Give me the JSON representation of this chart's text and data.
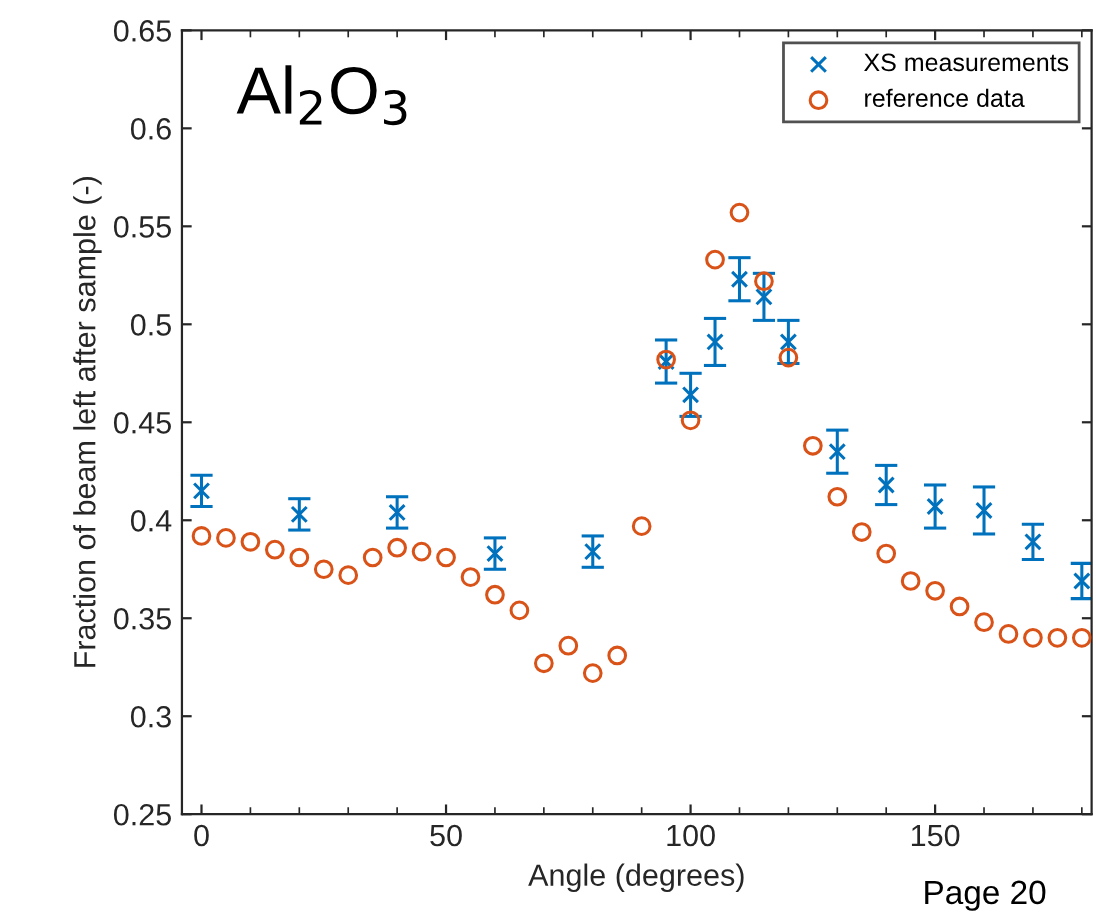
{
  "chart_data": {
    "type": "scatter",
    "xlabel": "Angle (degrees)",
    "ylabel": "Fraction of beam left after sample (-)",
    "annotations": [
      "Al$_{2}$O$_{3}$",
      "Page 20"
    ],
    "xlim": [
      -4,
      182
    ],
    "ylim": [
      0.25,
      0.65
    ],
    "xticks": [
      0,
      50,
      100,
      150
    ],
    "yticks": [
      0.25,
      0.3,
      0.35,
      0.4,
      0.45,
      0.5,
      0.55,
      0.6,
      0.65
    ],
    "grid": false,
    "legend": "top right",
    "series": [
      {
        "name": "XS measurements",
        "color": "#0072bd",
        "marker": "cross",
        "x": [
          0,
          20,
          40,
          60,
          80,
          95,
          100,
          105,
          110,
          115,
          120,
          130,
          140,
          150,
          160,
          170,
          180
        ],
        "values": [
          0.415,
          0.403,
          0.404,
          0.383,
          0.384,
          0.481,
          0.464,
          0.491,
          0.523,
          0.514,
          0.491,
          0.435,
          0.418,
          0.407,
          0.405,
          0.389,
          0.369
        ],
        "errors": [
          0.008,
          0.008,
          0.008,
          0.008,
          0.008,
          0.011,
          0.011,
          0.012,
          0.011,
          0.012,
          0.011,
          0.011,
          0.01,
          0.011,
          0.012,
          0.009,
          0.009
        ]
      },
      {
        "name": "reference data",
        "color": "#d95319",
        "marker": "circle",
        "x": [
          0,
          5,
          10,
          15,
          20,
          25,
          30,
          35,
          40,
          45,
          50,
          55,
          60,
          65,
          70,
          75,
          80,
          85,
          90,
          95,
          100,
          105,
          110,
          115,
          120,
          125,
          130,
          135,
          140,
          145,
          150,
          155,
          160,
          165,
          170,
          175,
          180
        ],
        "values": [
          0.392,
          0.391,
          0.389,
          0.385,
          0.381,
          0.375,
          0.372,
          0.381,
          0.386,
          0.384,
          0.381,
          0.371,
          0.362,
          0.354,
          0.327,
          0.336,
          0.322,
          0.331,
          0.397,
          0.482,
          0.451,
          0.533,
          0.557,
          0.522,
          0.483,
          0.438,
          0.412,
          0.394,
          0.383,
          0.369,
          0.364,
          0.356,
          0.348,
          0.342,
          0.34,
          0.34,
          0.34
        ]
      }
    ]
  }
}
